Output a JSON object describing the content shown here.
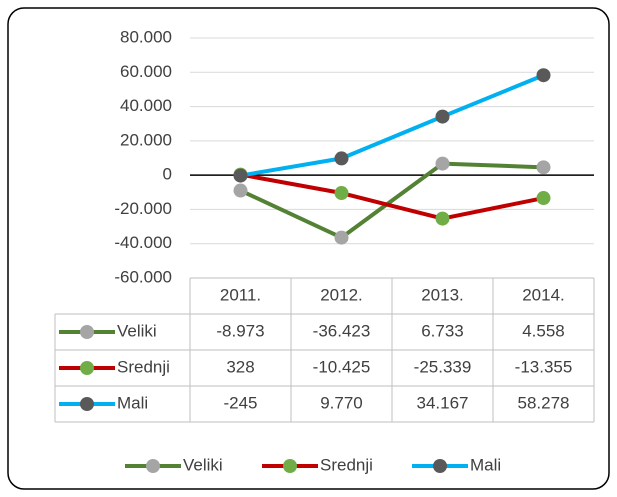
{
  "chart_data": {
    "type": "line",
    "categories": [
      "2011.",
      "2012.",
      "2013.",
      "2014."
    ],
    "series": [
      {
        "name": "Veliki",
        "color": "#548235",
        "marker_color": "#a5a5a5",
        "values": [
          -8973,
          -36423,
          6733,
          4558
        ],
        "value_labels": [
          "-8.973",
          "-36.423",
          "6.733",
          "4.558"
        ]
      },
      {
        "name": "Srednji",
        "color": "#c00000",
        "marker_color": "#70ad47",
        "values": [
          328,
          -10425,
          -25339,
          -13355
        ],
        "value_labels": [
          "328",
          "-10.425",
          "-25.339",
          "-13.355"
        ]
      },
      {
        "name": "Mali",
        "color": "#00b0f0",
        "marker_color": "#595959",
        "values": [
          -245,
          9770,
          34167,
          58278
        ],
        "value_labels": [
          "-245",
          "9.770",
          "34.167",
          "58.278"
        ]
      }
    ],
    "ylim": [
      -60000,
      80000
    ],
    "yticks": [
      {
        "value": -60000,
        "label": "-60.000"
      },
      {
        "value": -40000,
        "label": "-40.000"
      },
      {
        "value": -20000,
        "label": "-20.000"
      },
      0,
      {
        "value": 20000,
        "label": "20.000"
      },
      {
        "value": 40000,
        "label": "40.000"
      },
      {
        "value": 60000,
        "label": "60.000"
      },
      {
        "value": 80000,
        "label": "80.000"
      }
    ],
    "grid": true,
    "legend": "bottom"
  }
}
